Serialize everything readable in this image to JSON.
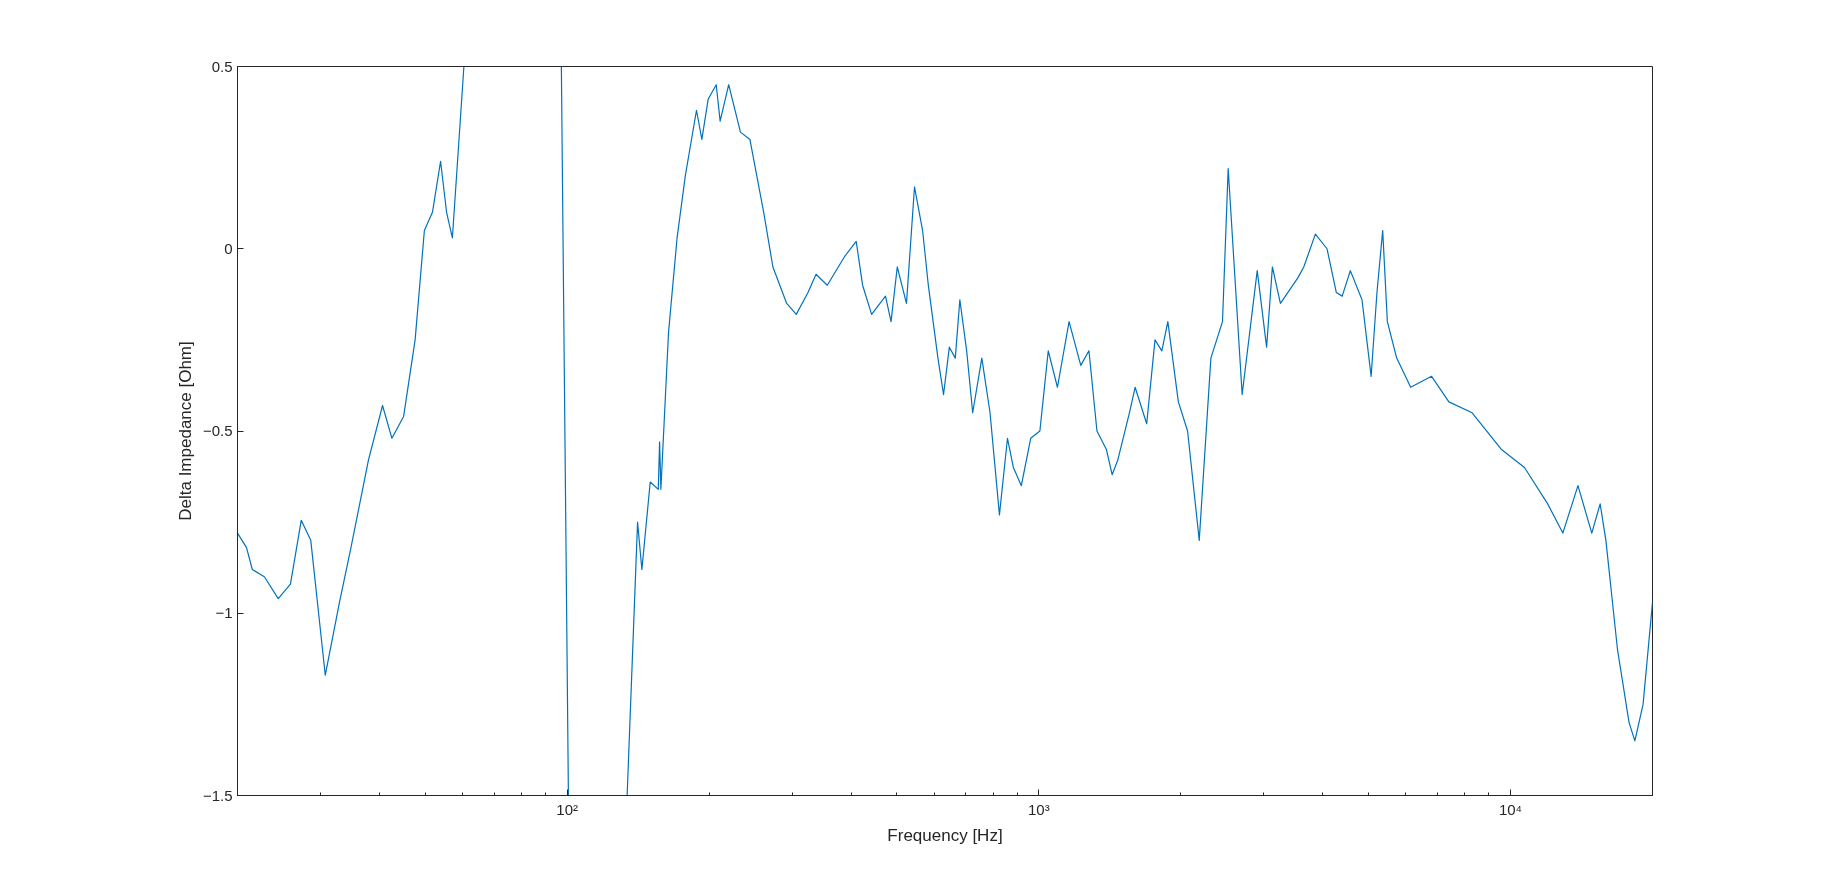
{
  "chart_data": {
    "type": "line",
    "xlabel": "Frequency [Hz]",
    "ylabel": "Delta Impedance [Ohm]",
    "log": "x",
    "grid": false,
    "marker": "none",
    "line_style": "solid",
    "xlim": [
      20,
      20000
    ],
    "ylim": [
      -1.5,
      0.5
    ],
    "xticks": [
      {
        "value": 100,
        "label": "10²"
      },
      {
        "value": 1000,
        "label": "10³"
      },
      {
        "value": 10000,
        "label": "10⁴"
      }
    ],
    "yticks": [
      -1.5,
      -1,
      -0.5,
      0,
      0.5
    ],
    "series": [
      {
        "color": "#0072bd",
        "x": [
          20,
          20.9,
          21.5,
          22.8,
          24.4,
          25.9,
          27.3,
          28.6,
          30.7,
          32.9,
          34.8,
          37.9,
          40.6,
          42.5,
          45.0,
          47.6,
          49.8,
          51.8,
          53.9,
          55.5,
          57.1,
          60.4,
          80,
          97.2,
          100.6,
          120,
          134,
          141,
          144,
          150,
          156,
          157,
          158,
          164,
          171,
          178,
          188,
          193,
          199,
          207,
          211,
          220,
          233,
          244,
          261,
          273,
          292,
          306,
          324,
          337,
          356,
          388,
          410,
          423,
          442,
          473,
          486,
          501,
          524,
          545,
          567,
          583,
          611,
          628,
          646,
          665,
          680,
          703,
          724,
          757,
          788,
          825,
          858,
          883,
          918,
          961,
          1005,
          1047,
          1095,
          1159,
          1227,
          1277,
          1328,
          1390,
          1430,
          1470,
          1556,
          1600,
          1693,
          1763,
          1823,
          1877,
          1976,
          2067,
          2188,
          2316,
          2451,
          2520,
          2698,
          2904,
          3040,
          3127,
          3252,
          3541,
          3645,
          3857,
          4083,
          4272,
          4397,
          4575,
          4843,
          5064,
          5210,
          5358,
          5481,
          5737,
          6142,
          6803,
          7402,
          8291,
          9554,
          10706,
          11990,
          12910,
          13900,
          14870,
          15490,
          15930,
          16860,
          17840,
          18350,
          19100,
          20000
        ],
        "values": [
          -0.78,
          -0.82,
          -0.88,
          -0.9,
          -0.96,
          -0.92,
          -0.745,
          -0.8,
          -1.17,
          -0.97,
          -0.82,
          -0.58,
          -0.43,
          -0.52,
          -0.46,
          -0.25,
          0.05,
          0.1,
          0.24,
          0.1,
          0.03,
          0.5,
          null,
          0.5,
          -1.5,
          null,
          -1.5,
          -0.75,
          -0.88,
          -0.64,
          -0.66,
          -0.53,
          -0.66,
          -0.23,
          0.03,
          0.2,
          0.38,
          0.3,
          0.41,
          0.45,
          0.35,
          0.45,
          0.32,
          0.3,
          0.1,
          -0.05,
          -0.15,
          -0.18,
          -0.12,
          -0.07,
          -0.1,
          -0.02,
          0.02,
          -0.1,
          -0.18,
          -0.13,
          -0.2,
          -0.05,
          -0.15,
          0.17,
          0.05,
          -0.1,
          -0.3,
          -0.4,
          -0.27,
          -0.3,
          -0.14,
          -0.28,
          -0.45,
          -0.3,
          -0.45,
          -0.73,
          -0.52,
          -0.6,
          -0.65,
          -0.52,
          -0.5,
          -0.28,
          -0.38,
          -0.2,
          -0.32,
          -0.28,
          -0.5,
          -0.55,
          -0.62,
          -0.58,
          -0.45,
          -0.38,
          -0.48,
          -0.25,
          -0.28,
          -0.2,
          -0.42,
          -0.5,
          -0.8,
          -0.3,
          -0.2,
          0.22,
          -0.4,
          -0.06,
          -0.27,
          -0.05,
          -0.15,
          -0.08,
          -0.05,
          0.04,
          0.0,
          -0.12,
          -0.13,
          -0.06,
          -0.14,
          -0.35,
          -0.12,
          0.05,
          -0.2,
          -0.3,
          -0.38,
          -0.35,
          -0.42,
          -0.45,
          -0.55,
          -0.6,
          -0.7,
          -0.78,
          -0.65,
          -0.78,
          -0.7,
          -0.8,
          -1.1,
          -1.3,
          -1.35,
          -1.25,
          -0.97
        ]
      }
    ]
  }
}
